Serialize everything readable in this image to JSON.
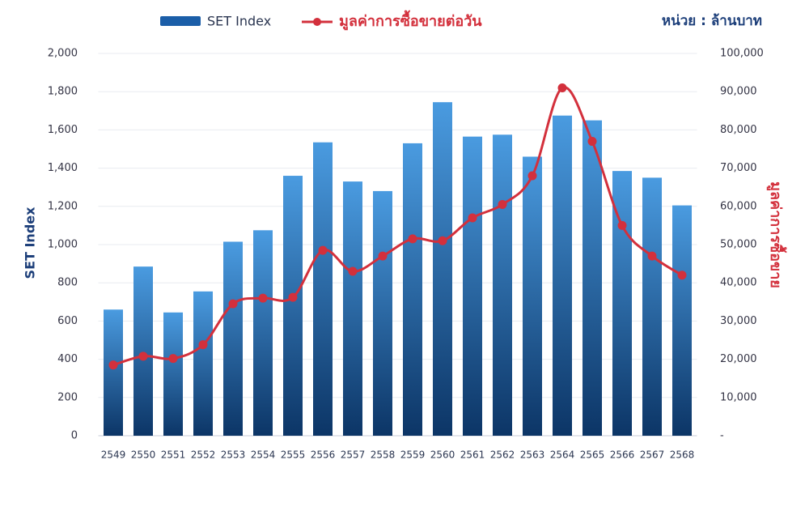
{
  "chart_data": {
    "type": "bar_line",
    "unit_note": "หน่วย : ล้านบาท",
    "y_label": "SET Index",
    "y2_label": "มูลค่าการซื้อขาย",
    "categories": [
      "2549",
      "2550",
      "2551",
      "2552",
      "2553",
      "2554",
      "2555",
      "2556",
      "2557",
      "2558",
      "2559",
      "2560",
      "2561",
      "2562",
      "2563",
      "2564",
      "2565",
      "2566",
      "2567",
      "2568"
    ],
    "series": [
      {
        "name": "SET Index",
        "type": "bar",
        "color": "#1b5ea8",
        "values": [
          660,
          885,
          645,
          755,
          1015,
          1075,
          1360,
          1535,
          1330,
          1280,
          1530,
          1745,
          1565,
          1575,
          1460,
          1675,
          1650,
          1385,
          1350,
          1205
        ]
      },
      {
        "name": "มูลค่าการซื้อขายต่อวัน",
        "type": "line",
        "axis": "y2",
        "color": "#d3303c",
        "values": [
          18500,
          20800,
          20200,
          23800,
          34500,
          36000,
          36200,
          48500,
          43000,
          47000,
          51500,
          51000,
          57000,
          60500,
          68000,
          91000,
          77000,
          55000,
          47000,
          42000
        ]
      }
    ],
    "ylim": [
      0,
      2000
    ],
    "yticks": [
      0,
      200,
      400,
      600,
      800,
      {
        "value": 1000,
        "label": "1,000"
      },
      {
        "value": 1200,
        "label": "1,200"
      },
      {
        "value": 1400,
        "label": "1,400"
      },
      {
        "value": 1600,
        "label": "1,600"
      },
      {
        "value": 1800,
        "label": "1,800"
      },
      {
        "value": 2000,
        "label": "2,000"
      }
    ],
    "y2lim": [
      0,
      100000
    ],
    "y2ticks": [
      {
        "value": 0,
        "label": "-"
      },
      {
        "value": 10000,
        "label": "10,000"
      },
      {
        "value": 20000,
        "label": "20,000"
      },
      {
        "value": 30000,
        "label": "30,000"
      },
      {
        "value": 40000,
        "label": "40,000"
      },
      {
        "value": 50000,
        "label": "50,000"
      },
      {
        "value": 60000,
        "label": "60,000"
      },
      {
        "value": 70000,
        "label": "70,000"
      },
      {
        "value": 80000,
        "label": "80,000"
      },
      {
        "value": 90000,
        "label": "90,000"
      },
      {
        "value": 100000,
        "label": "100,000"
      }
    ],
    "grid": true
  }
}
